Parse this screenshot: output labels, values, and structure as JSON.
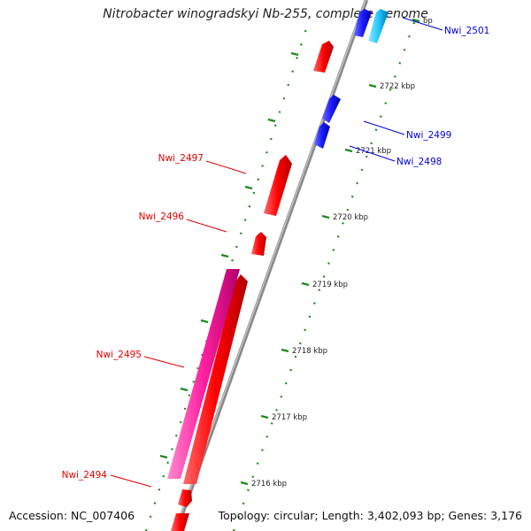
{
  "title": "Nitrobacter winogradskyi Nb-255, complete genome",
  "accession": "Accession: NC_007406",
  "summary": "Topology: circular; Length: 3,402,093 bp; Genes: 3,176",
  "colors": {
    "backbone": "#7a7a7a",
    "forward_gene": "#ff0000",
    "forward_gene_alt": "#ff1fa0",
    "reverse_gene": "#1a1aff",
    "reverse_gene_alt": "#22c8ff",
    "tick": "#1f8a1f",
    "label_forward": "#e00000",
    "label_reverse": "#0000dd"
  },
  "ticks": [
    {
      "label": "2716 kbp"
    },
    {
      "label": "2717 kbp"
    },
    {
      "label": "2718 kbp"
    },
    {
      "label": "2719 kbp"
    },
    {
      "label": "2720 kbp"
    },
    {
      "label": "2721 kbp"
    },
    {
      "label": "2722 kbp"
    },
    {
      "label": "bp"
    }
  ],
  "genes": [
    {
      "name": "Nwi_2494",
      "strand": "forward"
    },
    {
      "name": "Nwi_2495",
      "strand": "forward"
    },
    {
      "name": "Nwi_2496",
      "strand": "forward"
    },
    {
      "name": "Nwi_2497",
      "strand": "forward"
    },
    {
      "name": "Nwi_2498",
      "strand": "reverse"
    },
    {
      "name": "Nwi_2499",
      "strand": "reverse"
    },
    {
      "name": "Nwi_2501",
      "strand": "reverse"
    }
  ]
}
